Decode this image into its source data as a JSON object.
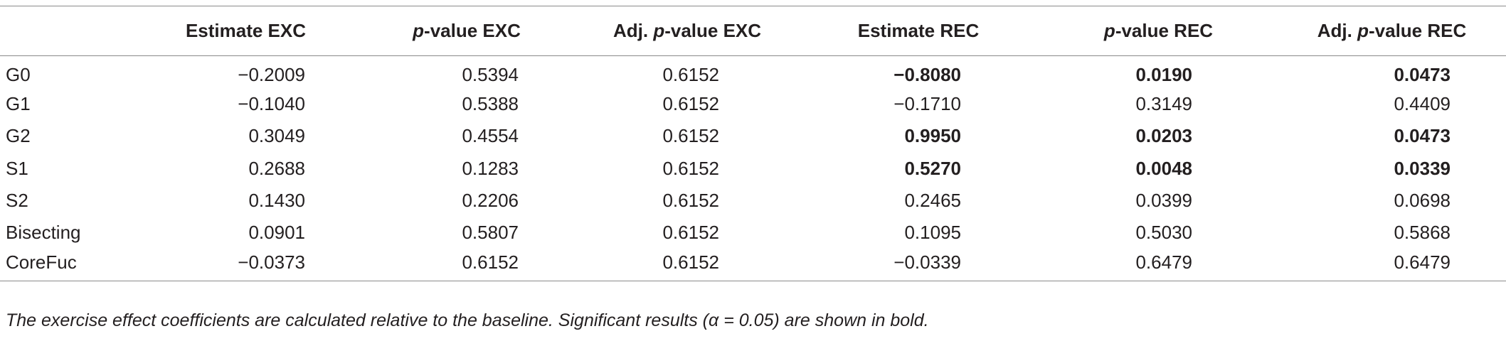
{
  "table": {
    "headers": [
      "",
      {
        "pre": "Estimate EXC",
        "italic": "",
        "post": ""
      },
      {
        "pre": "",
        "italic": "p",
        "post": "-value EXC"
      },
      {
        "pre": "Adj. ",
        "italic": "p",
        "post": "-value EXC"
      },
      {
        "pre": "Estimate REC",
        "italic": "",
        "post": ""
      },
      {
        "pre": "",
        "italic": "p",
        "post": "-value REC"
      },
      {
        "pre": "Adj. ",
        "italic": "p",
        "post": "-value REC"
      }
    ],
    "rows": [
      {
        "label": "G0",
        "cells": [
          {
            "v": "−0.2009",
            "bold": false
          },
          {
            "v": "0.5394",
            "bold": false
          },
          {
            "v": "0.6152",
            "bold": false
          },
          {
            "v": "−0.8080",
            "bold": true
          },
          {
            "v": "0.0190",
            "bold": true
          },
          {
            "v": "0.0473",
            "bold": true
          }
        ]
      },
      {
        "label": "G1",
        "cells": [
          {
            "v": "−0.1040",
            "bold": false
          },
          {
            "v": "0.5388",
            "bold": false
          },
          {
            "v": "0.6152",
            "bold": false
          },
          {
            "v": "−0.1710",
            "bold": false
          },
          {
            "v": "0.3149",
            "bold": false
          },
          {
            "v": "0.4409",
            "bold": false
          }
        ]
      },
      {
        "label": "G2",
        "cells": [
          {
            "v": "0.3049",
            "bold": false
          },
          {
            "v": "0.4554",
            "bold": false
          },
          {
            "v": "0.6152",
            "bold": false
          },
          {
            "v": "0.9950",
            "bold": true
          },
          {
            "v": "0.0203",
            "bold": true
          },
          {
            "v": "0.0473",
            "bold": true
          }
        ]
      },
      {
        "label": "S1",
        "cells": [
          {
            "v": "0.2688",
            "bold": false
          },
          {
            "v": "0.1283",
            "bold": false
          },
          {
            "v": "0.6152",
            "bold": false
          },
          {
            "v": "0.5270",
            "bold": true
          },
          {
            "v": "0.0048",
            "bold": true
          },
          {
            "v": "0.0339",
            "bold": true
          }
        ]
      },
      {
        "label": "S2",
        "cells": [
          {
            "v": "0.1430",
            "bold": false
          },
          {
            "v": "0.2206",
            "bold": false
          },
          {
            "v": "0.6152",
            "bold": false
          },
          {
            "v": "0.2465",
            "bold": false
          },
          {
            "v": "0.0399",
            "bold": false
          },
          {
            "v": "0.0698",
            "bold": false
          }
        ]
      },
      {
        "label": "Bisecting",
        "cells": [
          {
            "v": "0.0901",
            "bold": false
          },
          {
            "v": "0.5807",
            "bold": false
          },
          {
            "v": "0.6152",
            "bold": false
          },
          {
            "v": "0.1095",
            "bold": false
          },
          {
            "v": "0.5030",
            "bold": false
          },
          {
            "v": "0.5868",
            "bold": false
          }
        ]
      },
      {
        "label": "CoreFuc",
        "cells": [
          {
            "v": "−0.0373",
            "bold": false
          },
          {
            "v": "0.6152",
            "bold": false
          },
          {
            "v": "0.6152",
            "bold": false
          },
          {
            "v": "−0.0339",
            "bold": false
          },
          {
            "v": "0.6479",
            "bold": false
          },
          {
            "v": "0.6479",
            "bold": false
          }
        ]
      }
    ]
  },
  "footnote": "The exercise effect coefficients are calculated relative to the baseline. Significant results (α = 0.05) are shown in bold."
}
